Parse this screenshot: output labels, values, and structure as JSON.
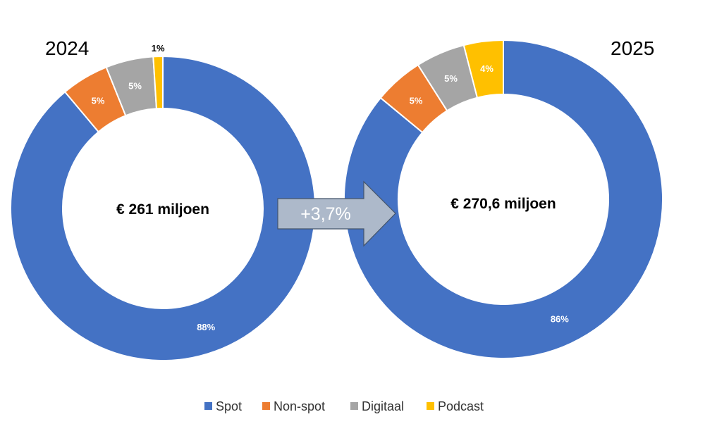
{
  "chart_data": {
    "type": "pie",
    "variant": "donut",
    "categories": [
      "Spot",
      "Non-spot",
      "Digitaal",
      "Podcast"
    ],
    "colors": [
      "#4472C4",
      "#ED7D31",
      "#A5A5A5",
      "#FFC000"
    ],
    "legend_position": "bottom",
    "growth_label": "+3,7%",
    "charts": [
      {
        "year": "2024",
        "total_label": "€ 261 miljoen",
        "values": [
          88,
          5,
          5,
          1
        ],
        "labels": [
          "88%",
          "5%",
          "5%",
          "1%"
        ]
      },
      {
        "year": "2025",
        "total_label": "€ 270,6 miljoen",
        "values": [
          86,
          5,
          5,
          4
        ],
        "labels": [
          "86%",
          "5%",
          "5%",
          "4%"
        ]
      }
    ]
  }
}
